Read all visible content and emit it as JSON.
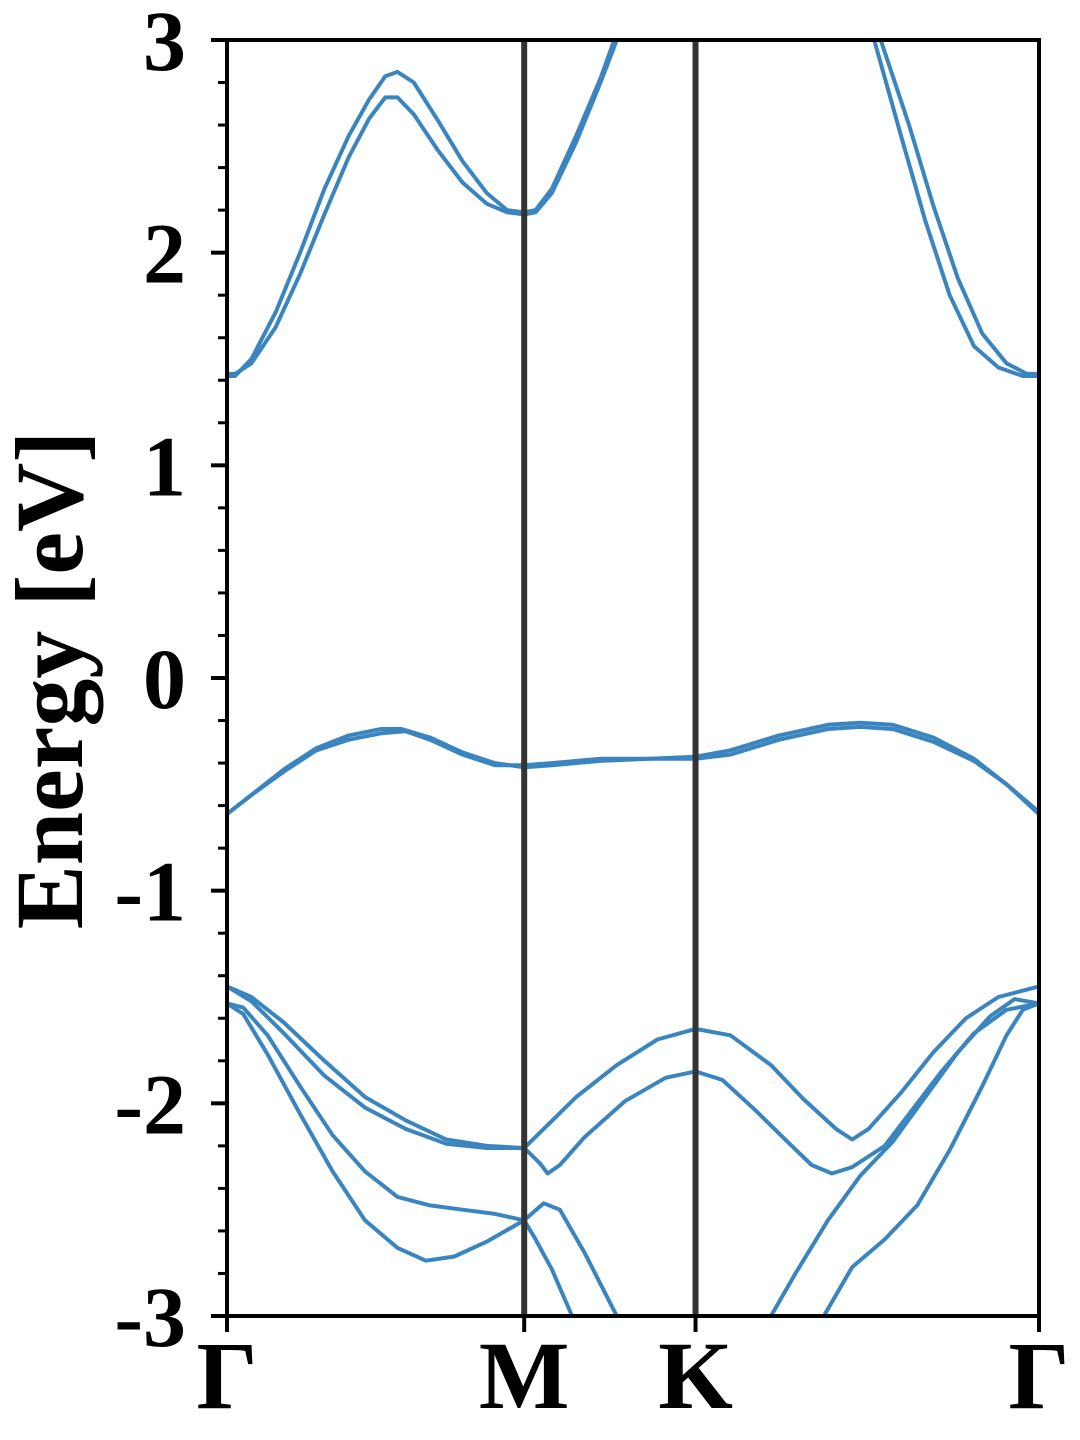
{
  "chart_data": {
    "type": "line",
    "title": "",
    "xlabel": "",
    "ylabel": "Energy [eV]",
    "ylim": [
      -3,
      3
    ],
    "yticks": [
      -3,
      -2,
      -1,
      0,
      1,
      2,
      3
    ],
    "yticks_minor_step": 0.2,
    "xlim": [
      0,
      1
    ],
    "kpoints": [
      {
        "label": "Γ",
        "x": 0.0
      },
      {
        "label": "M",
        "x": 0.366
      },
      {
        "label": "K",
        "x": 0.577
      },
      {
        "label": "Γ",
        "x": 1.0
      }
    ],
    "grid": false,
    "colors": {
      "band": "#3a85c0",
      "kline": "#333333",
      "axes": "#000000"
    },
    "series": [
      {
        "points": [
          [
            0.0,
            1.42
          ],
          [
            0.01,
            1.42
          ],
          [
            0.03,
            1.5
          ],
          [
            0.06,
            1.72
          ],
          [
            0.09,
            2.0
          ],
          [
            0.12,
            2.3
          ],
          [
            0.15,
            2.55
          ],
          [
            0.175,
            2.72
          ],
          [
            0.195,
            2.83
          ],
          [
            0.21,
            2.85
          ],
          [
            0.23,
            2.8
          ],
          [
            0.26,
            2.62
          ],
          [
            0.29,
            2.43
          ],
          [
            0.32,
            2.28
          ],
          [
            0.345,
            2.2
          ],
          [
            0.366,
            2.19
          ],
          [
            0.38,
            2.2
          ],
          [
            0.4,
            2.3
          ],
          [
            0.43,
            2.55
          ],
          [
            0.46,
            2.82
          ],
          [
            0.477,
            3.0
          ]
        ]
      },
      {
        "points": [
          [
            0.0,
            1.43
          ],
          [
            0.01,
            1.43
          ],
          [
            0.03,
            1.48
          ],
          [
            0.06,
            1.65
          ],
          [
            0.09,
            1.9
          ],
          [
            0.12,
            2.18
          ],
          [
            0.15,
            2.45
          ],
          [
            0.175,
            2.63
          ],
          [
            0.195,
            2.73
          ],
          [
            0.21,
            2.73
          ],
          [
            0.23,
            2.65
          ],
          [
            0.26,
            2.48
          ],
          [
            0.29,
            2.33
          ],
          [
            0.32,
            2.23
          ],
          [
            0.345,
            2.19
          ],
          [
            0.366,
            2.18
          ],
          [
            0.38,
            2.19
          ],
          [
            0.4,
            2.28
          ],
          [
            0.43,
            2.52
          ],
          [
            0.46,
            2.8
          ],
          [
            0.48,
            3.0
          ]
        ]
      },
      {
        "points": [
          [
            0.805,
            3.0
          ],
          [
            0.84,
            2.6
          ],
          [
            0.87,
            2.22
          ],
          [
            0.9,
            1.88
          ],
          [
            0.93,
            1.62
          ],
          [
            0.96,
            1.48
          ],
          [
            0.985,
            1.43
          ],
          [
            1.0,
            1.43
          ]
        ]
      },
      {
        "points": [
          [
            0.797,
            3.0
          ],
          [
            0.83,
            2.55
          ],
          [
            0.86,
            2.15
          ],
          [
            0.89,
            1.8
          ],
          [
            0.92,
            1.56
          ],
          [
            0.95,
            1.46
          ],
          [
            0.98,
            1.42
          ],
          [
            1.0,
            1.42
          ]
        ]
      },
      {
        "points": [
          [
            0.0,
            -0.64
          ],
          [
            0.03,
            -0.55
          ],
          [
            0.07,
            -0.43
          ],
          [
            0.11,
            -0.33
          ],
          [
            0.15,
            -0.27
          ],
          [
            0.19,
            -0.24
          ],
          [
            0.215,
            -0.24
          ],
          [
            0.25,
            -0.28
          ],
          [
            0.29,
            -0.35
          ],
          [
            0.33,
            -0.4
          ],
          [
            0.366,
            -0.42
          ],
          [
            0.4,
            -0.41
          ],
          [
            0.46,
            -0.39
          ],
          [
            0.52,
            -0.38
          ],
          [
            0.577,
            -0.37
          ],
          [
            0.62,
            -0.34
          ],
          [
            0.68,
            -0.27
          ],
          [
            0.74,
            -0.22
          ],
          [
            0.78,
            -0.21
          ],
          [
            0.82,
            -0.22
          ],
          [
            0.87,
            -0.28
          ],
          [
            0.92,
            -0.38
          ],
          [
            0.96,
            -0.5
          ],
          [
            1.0,
            -0.64
          ]
        ]
      },
      {
        "points": [
          [
            0.0,
            -0.64
          ],
          [
            0.03,
            -0.55
          ],
          [
            0.07,
            -0.44
          ],
          [
            0.11,
            -0.34
          ],
          [
            0.15,
            -0.29
          ],
          [
            0.19,
            -0.26
          ],
          [
            0.22,
            -0.25
          ],
          [
            0.25,
            -0.29
          ],
          [
            0.29,
            -0.36
          ],
          [
            0.33,
            -0.41
          ],
          [
            0.366,
            -0.41
          ],
          [
            0.4,
            -0.4
          ],
          [
            0.46,
            -0.38
          ],
          [
            0.52,
            -0.38
          ],
          [
            0.577,
            -0.38
          ],
          [
            0.62,
            -0.36
          ],
          [
            0.68,
            -0.29
          ],
          [
            0.74,
            -0.24
          ],
          [
            0.78,
            -0.23
          ],
          [
            0.82,
            -0.24
          ],
          [
            0.87,
            -0.3
          ],
          [
            0.92,
            -0.39
          ],
          [
            0.96,
            -0.5
          ],
          [
            1.0,
            -0.63
          ]
        ]
      },
      {
        "points": [
          [
            0.0,
            -1.45
          ],
          [
            0.03,
            -1.5
          ],
          [
            0.07,
            -1.62
          ],
          [
            0.12,
            -1.8
          ],
          [
            0.17,
            -1.97
          ],
          [
            0.22,
            -2.08
          ],
          [
            0.27,
            -2.17
          ],
          [
            0.32,
            -2.2
          ],
          [
            0.366,
            -2.21
          ],
          [
            0.39,
            -2.12
          ],
          [
            0.43,
            -1.97
          ],
          [
            0.48,
            -1.82
          ],
          [
            0.53,
            -1.7
          ],
          [
            0.577,
            -1.65
          ],
          [
            0.62,
            -1.68
          ],
          [
            0.67,
            -1.82
          ],
          [
            0.71,
            -1.98
          ],
          [
            0.75,
            -2.12
          ],
          [
            0.77,
            -2.17
          ],
          [
            0.79,
            -2.12
          ],
          [
            0.83,
            -1.95
          ],
          [
            0.87,
            -1.76
          ],
          [
            0.91,
            -1.6
          ],
          [
            0.95,
            -1.5
          ],
          [
            1.0,
            -1.45
          ]
        ]
      },
      {
        "points": [
          [
            0.0,
            -1.45
          ],
          [
            0.03,
            -1.52
          ],
          [
            0.07,
            -1.67
          ],
          [
            0.12,
            -1.87
          ],
          [
            0.17,
            -2.02
          ],
          [
            0.22,
            -2.12
          ],
          [
            0.27,
            -2.19
          ],
          [
            0.32,
            -2.21
          ],
          [
            0.366,
            -2.21
          ],
          [
            0.385,
            -2.28
          ],
          [
            0.395,
            -2.33
          ],
          [
            0.41,
            -2.29
          ],
          [
            0.44,
            -2.16
          ],
          [
            0.49,
            -1.99
          ],
          [
            0.54,
            -1.88
          ],
          [
            0.577,
            -1.85
          ],
          [
            0.61,
            -1.89
          ],
          [
            0.65,
            -2.03
          ],
          [
            0.69,
            -2.18
          ],
          [
            0.72,
            -2.29
          ],
          [
            0.745,
            -2.33
          ],
          [
            0.77,
            -2.3
          ],
          [
            0.79,
            -2.25
          ],
          [
            0.81,
            -2.2
          ],
          [
            0.84,
            -2.05
          ],
          [
            0.88,
            -1.85
          ],
          [
            0.92,
            -1.67
          ],
          [
            0.96,
            -1.56
          ],
          [
            1.0,
            -1.53
          ]
        ]
      },
      {
        "points": [
          [
            0.0,
            -1.53
          ],
          [
            0.02,
            -1.55
          ],
          [
            0.05,
            -1.68
          ],
          [
            0.09,
            -1.92
          ],
          [
            0.13,
            -2.15
          ],
          [
            0.17,
            -2.32
          ],
          [
            0.21,
            -2.44
          ],
          [
            0.25,
            -2.48
          ],
          [
            0.29,
            -2.5
          ],
          [
            0.33,
            -2.52
          ],
          [
            0.366,
            -2.55
          ],
          [
            0.38,
            -2.64
          ],
          [
            0.4,
            -2.78
          ],
          [
            0.425,
            -3.0
          ]
        ]
      },
      {
        "points": [
          [
            0.0,
            -1.53
          ],
          [
            0.02,
            -1.58
          ],
          [
            0.05,
            -1.77
          ],
          [
            0.09,
            -2.05
          ],
          [
            0.13,
            -2.32
          ],
          [
            0.17,
            -2.55
          ],
          [
            0.21,
            -2.68
          ],
          [
            0.245,
            -2.74
          ],
          [
            0.28,
            -2.72
          ],
          [
            0.32,
            -2.65
          ],
          [
            0.366,
            -2.55
          ],
          [
            0.39,
            -2.47
          ],
          [
            0.41,
            -2.5
          ],
          [
            0.44,
            -2.7
          ],
          [
            0.48,
            -3.0
          ]
        ]
      },
      {
        "points": [
          [
            0.67,
            -3.0
          ],
          [
            0.7,
            -2.8
          ],
          [
            0.74,
            -2.55
          ],
          [
            0.78,
            -2.34
          ],
          [
            0.82,
            -2.18
          ],
          [
            0.86,
            -1.97
          ],
          [
            0.9,
            -1.76
          ],
          [
            0.94,
            -1.59
          ],
          [
            0.97,
            -1.51
          ],
          [
            1.0,
            -1.53
          ]
        ]
      },
      {
        "points": [
          [
            0.735,
            -3.0
          ],
          [
            0.77,
            -2.77
          ],
          [
            0.81,
            -2.64
          ],
          [
            0.85,
            -2.48
          ],
          [
            0.89,
            -2.22
          ],
          [
            0.93,
            -1.92
          ],
          [
            0.96,
            -1.68
          ],
          [
            0.98,
            -1.56
          ],
          [
            1.0,
            -1.53
          ]
        ]
      }
    ]
  }
}
